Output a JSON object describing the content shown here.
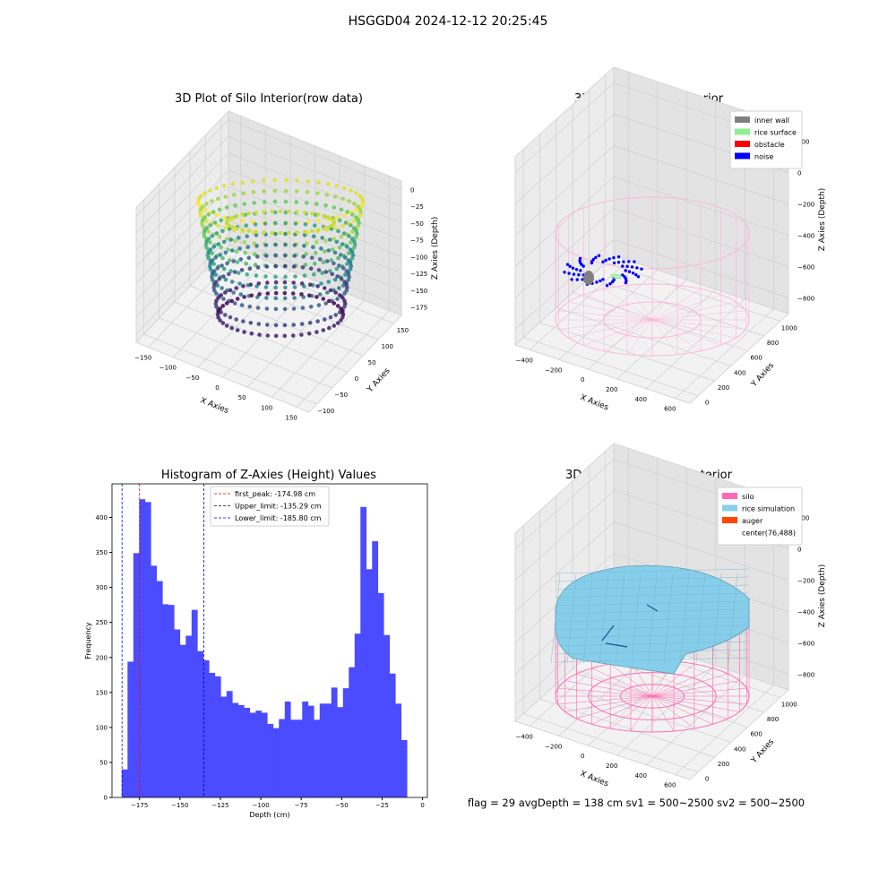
{
  "figure": {
    "title": "HSGGD04 2024-12-12 20:25:45",
    "status_line": "flag = 29  avgDepth = 138 cm  sv1 = 500~2500  sv2 = 500~2500"
  },
  "chart_data": [
    {
      "type": "scatter",
      "projection": "3d",
      "title": "3D Plot of Silo Interior(row data)",
      "xlabel": "X Axies",
      "ylabel": "Y Axies",
      "zlabel": "Z Axies (Depth)",
      "xticks": [
        "−150",
        "−100",
        "−50",
        "0",
        "50",
        "100",
        "150"
      ],
      "yticks": [
        "−100",
        "−50",
        "0",
        "50",
        "100",
        "150"
      ],
      "zticks": [
        "0",
        "−25",
        "−50",
        "−75",
        "−100",
        "−125",
        "−150",
        "−175"
      ],
      "colormap": "viridis",
      "grid": true
    },
    {
      "type": "scatter",
      "projection": "3d",
      "title": "3D classify of Silo Interior",
      "xlabel": "X Axies",
      "ylabel": "Y Axies",
      "zlabel": "Z Axies (Depth)",
      "xticks": [
        "−400",
        "−200",
        "0",
        "200",
        "400",
        "600"
      ],
      "yticks": [
        "0",
        "200",
        "400",
        "600",
        "800",
        "1000"
      ],
      "zticks": [
        "200",
        "0",
        "−200",
        "−400",
        "−600",
        "−800"
      ],
      "legend": [
        {
          "name": "inner wall",
          "color": "#808080"
        },
        {
          "name": "rice surface",
          "color": "#90ee90"
        },
        {
          "name": "obstacle",
          "color": "#ff0000"
        },
        {
          "name": "noise",
          "color": "#0000ff"
        }
      ],
      "legend_position": "top-right",
      "wireframe_color": "#ffb6d9",
      "grid": true
    },
    {
      "type": "bar",
      "title": "Histogram of Z-Axies (Height) Values",
      "xlabel": "Depth (cm)",
      "ylabel": "Frequency",
      "bar_color": "#4b4bff",
      "bin_start": -186,
      "bin_width": 3.6,
      "values": [
        40,
        194,
        349,
        426,
        422,
        331,
        309,
        276,
        275,
        240,
        218,
        231,
        268,
        209,
        196,
        178,
        173,
        144,
        152,
        135,
        132,
        128,
        121,
        124,
        121,
        105,
        99,
        112,
        137,
        111,
        111,
        137,
        131,
        111,
        134,
        134,
        157,
        129,
        156,
        186,
        234,
        415,
        326,
        366,
        292,
        232,
        177,
        134,
        82
      ],
      "xlim": [
        -192,
        3
      ],
      "ylim": [
        0,
        448
      ],
      "xticks": [
        "−175",
        "−150",
        "−125",
        "−100",
        "−75",
        "−50",
        "−25",
        "0"
      ],
      "xtick_values": [
        -175,
        -150,
        -125,
        -100,
        -75,
        -50,
        -25,
        0
      ],
      "yticks": [
        "0",
        "50",
        "100",
        "150",
        "200",
        "250",
        "300",
        "350",
        "400"
      ],
      "ytick_values": [
        0,
        50,
        100,
        150,
        200,
        250,
        300,
        350,
        400
      ],
      "lines": [
        {
          "name": "first_peak: -174.98 cm",
          "x": -174.98,
          "color": "#ff0000"
        },
        {
          "name": "Upper_limit: -135.29 cm",
          "x": -135.29,
          "color": "#00008b"
        },
        {
          "name": "Lower_limit: -185.80 cm",
          "x": -185.8,
          "color": "#0000ff"
        }
      ],
      "legend_position": "top-center"
    },
    {
      "type": "surface",
      "projection": "3d",
      "title": "3D simulation of Silo Interior",
      "xlabel": "X Axies",
      "ylabel": "Y Axies",
      "zlabel": "Z Axies (Depth)",
      "xticks": [
        "−400",
        "−200",
        "0",
        "200",
        "400",
        "600"
      ],
      "yticks": [
        "0",
        "200",
        "400",
        "600",
        "800",
        "1000"
      ],
      "zticks": [
        "200",
        "0",
        "−200",
        "−400",
        "−600",
        "−800"
      ],
      "legend": [
        {
          "name": "silo",
          "color": "#ff69b4"
        },
        {
          "name": "rice simulation",
          "color": "#87ceeb"
        },
        {
          "name": "auger",
          "color": "#ff4500"
        },
        {
          "name": "center(76,488)",
          "color": ""
        }
      ],
      "legend_position": "top-right",
      "grid": true
    }
  ]
}
